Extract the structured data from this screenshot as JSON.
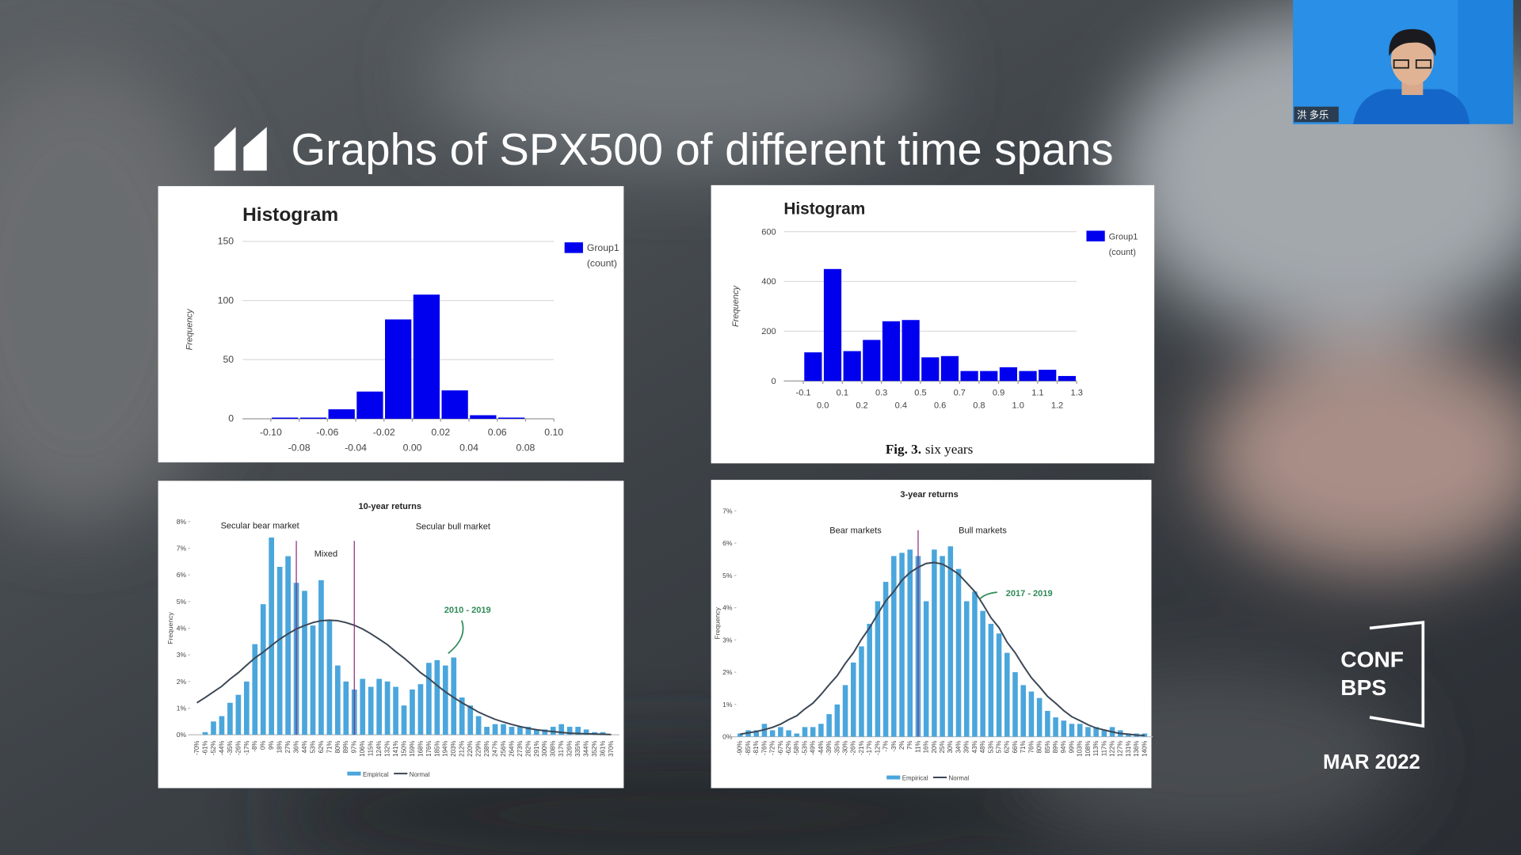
{
  "slide": {
    "title": "Graphs of SPX500 of different time spans",
    "logo_top": "CONF",
    "logo_bottom": "BPS",
    "date": "MAR 2022",
    "participant": "洪 多乐"
  },
  "chart_data": [
    {
      "type": "histogram",
      "title": "Histogram",
      "y_label": "Frequency",
      "bins": [
        -0.1,
        -0.08,
        -0.06,
        -0.04,
        -0.02,
        0,
        0.02,
        0.04,
        0.06,
        0.08,
        0.1
      ],
      "series": [
        {
          "name": "Group1",
          "color": "#0000ee",
          "values": [
            1,
            1,
            8,
            23,
            84,
            105,
            24,
            3,
            1,
            0
          ]
        }
      ],
      "legend_note": "(count)",
      "xlim": [
        -0.12,
        0.1
      ],
      "xticks": [
        {
          "value": -0.1,
          "label": "-0.10"
        },
        -0.08,
        -0.06,
        -0.04,
        -0.02,
        {
          "value": 0,
          "label": "0.00"
        },
        0.02,
        0.04,
        0.06,
        0.08,
        {
          "value": 0.1,
          "label": "0.10"
        }
      ],
      "ylim": [
        0,
        150
      ],
      "yticks": [
        0,
        50,
        100,
        150
      ],
      "grid": true
    },
    {
      "type": "histogram",
      "title": "Histogram",
      "y_label": "Frequency",
      "bins": [
        -0.1,
        0,
        0.1,
        0.2,
        0.3,
        0.4,
        0.5,
        0.6,
        0.7,
        0.8,
        0.9,
        1.0,
        1.1,
        1.2,
        1.3
      ],
      "series": [
        {
          "name": "Group1",
          "color": "#0000ee",
          "values": [
            115,
            450,
            120,
            165,
            240,
            245,
            95,
            100,
            40,
            40,
            55,
            40,
            45,
            20
          ]
        }
      ],
      "legend_note": "(count)",
      "xlim": [
        -0.2,
        1.3
      ],
      "xticks": [
        -0.1,
        {
          "value": 0,
          "label": "0.0"
        },
        0.1,
        0.2,
        0.3,
        0.4,
        0.5,
        0.6,
        0.7,
        0.8,
        0.9,
        {
          "value": 1,
          "label": "1.0"
        },
        1.1,
        1.2,
        1.3
      ],
      "ylim": [
        0,
        600
      ],
      "yticks": [
        0,
        200,
        400,
        600
      ],
      "grid": true,
      "caption_label": "Fig. 3.",
      "caption": "six years"
    },
    {
      "type": "bar",
      "title": "10-year returns",
      "y_label": "Frequency",
      "categories": [
        "-70%",
        "-61%",
        "-52%",
        "-44%",
        "-35%",
        "-26%",
        "-17%",
        "-8%",
        "0%",
        "9%",
        "18%",
        "27%",
        "36%",
        "44%",
        "53%",
        "62%",
        "71%",
        "80%",
        "89%",
        "97%",
        "106%",
        "115%",
        "124%",
        "132%",
        "141%",
        "150%",
        "159%",
        "168%",
        "176%",
        "185%",
        "194%",
        "203%",
        "212%",
        "220%",
        "229%",
        "238%",
        "247%",
        "256%",
        "264%",
        "273%",
        "282%",
        "291%",
        "300%",
        "308%",
        "317%",
        "326%",
        "335%",
        "344%",
        "352%",
        "361%",
        "370%"
      ],
      "series": [
        {
          "name": "Empirical",
          "color": "#4aa6dc",
          "values": [
            0,
            0.1,
            0.5,
            0.7,
            1.2,
            1.5,
            2.0,
            3.4,
            4.9,
            7.4,
            6.3,
            6.7,
            5.7,
            5.4,
            4.1,
            5.8,
            4.3,
            2.6,
            2.0,
            1.7,
            2.1,
            1.8,
            2.1,
            2.0,
            1.8,
            1.1,
            1.7,
            1.9,
            2.7,
            2.8,
            2.6,
            2.9,
            1.4,
            1.1,
            0.7,
            0.3,
            0.4,
            0.4,
            0.3,
            0.3,
            0.3,
            0.2,
            0.2,
            0.3,
            0.4,
            0.3,
            0.3,
            0.2,
            0.1,
            0.1,
            0
          ]
        },
        {
          "name": "Normal",
          "type": "line",
          "color": "#3b4654",
          "values": [
            1.2,
            1.4,
            1.61,
            1.82,
            2.09,
            2.33,
            2.61,
            2.88,
            3.1,
            3.35,
            3.59,
            3.79,
            3.97,
            4.1,
            4.21,
            4.28,
            4.3,
            4.28,
            4.21,
            4.11,
            3.97,
            3.79,
            3.59,
            3.38,
            3.12,
            2.88,
            2.61,
            2.33,
            2.11,
            1.85,
            1.61,
            1.4,
            1.2,
            1.03,
            0.85,
            0.71,
            0.58,
            0.48,
            0.39,
            0.31,
            0.24,
            0.19,
            0.15,
            0.12,
            0.09,
            0.06,
            0.05,
            0.04,
            0.03,
            0.02,
            0.01
          ]
        }
      ],
      "ylim": [
        0,
        8
      ],
      "yticks": [
        {
          "value": 0,
          "label": "0%"
        },
        {
          "value": 1,
          "label": "1%"
        },
        {
          "value": 2,
          "label": "2%"
        },
        {
          "value": 3,
          "label": "3%"
        },
        {
          "value": 4,
          "label": "4%"
        },
        {
          "value": 5,
          "label": "5%"
        },
        {
          "value": 6,
          "label": "6%"
        },
        {
          "value": 7,
          "label": "7%"
        },
        {
          "value": 8,
          "label": "8%"
        }
      ],
      "vlines": [
        "36%",
        "97%"
      ],
      "annotations": [
        "Secular bear market",
        "Mixed",
        "Secular bull market",
        "2010 - 2019"
      ]
    },
    {
      "type": "bar",
      "title": "3-year returns",
      "y_label": "Frequency",
      "categories": [
        "-90%",
        "-85%",
        "-81%",
        "-76%",
        "-72%",
        "-67%",
        "-62%",
        "-58%",
        "-53%",
        "-49%",
        "-44%",
        "-39%",
        "-35%",
        "-30%",
        "-26%",
        "-21%",
        "-17%",
        "-12%",
        "-7%",
        "-3%",
        "2%",
        "7%",
        "11%",
        "16%",
        "20%",
        "25%",
        "30%",
        "34%",
        "39%",
        "43%",
        "48%",
        "53%",
        "57%",
        "62%",
        "66%",
        "71%",
        "76%",
        "80%",
        "85%",
        "89%",
        "94%",
        "99%",
        "103%",
        "108%",
        "113%",
        "117%",
        "122%",
        "127%",
        "131%",
        "136%",
        "140%"
      ],
      "series": [
        {
          "name": "Empirical",
          "color": "#4aa6dc",
          "values": [
            0.1,
            0.2,
            0.2,
            0.4,
            0.2,
            0.3,
            0.2,
            0.1,
            0.3,
            0.3,
            0.4,
            0.7,
            1.0,
            1.6,
            2.3,
            2.8,
            3.5,
            4.2,
            4.8,
            5.6,
            5.7,
            5.8,
            5.6,
            4.2,
            5.8,
            5.6,
            5.9,
            5.2,
            4.2,
            4.5,
            3.9,
            3.5,
            3.2,
            2.6,
            2.0,
            1.6,
            1.4,
            1.2,
            0.8,
            0.6,
            0.5,
            0.4,
            0.4,
            0.3,
            0.3,
            0.2,
            0.3,
            0.2,
            0.1,
            0.1,
            0.1
          ]
        },
        {
          "name": "Normal",
          "type": "line",
          "color": "#3b4654",
          "values": [
            0.08,
            0.12,
            0.16,
            0.22,
            0.29,
            0.39,
            0.53,
            0.65,
            0.86,
            1.04,
            1.31,
            1.61,
            1.89,
            2.27,
            2.6,
            3.02,
            3.38,
            3.8,
            4.21,
            4.5,
            4.85,
            5.09,
            5.25,
            5.37,
            5.4,
            5.35,
            5.21,
            5.04,
            4.77,
            4.5,
            4.11,
            3.69,
            3.38,
            2.93,
            2.6,
            2.2,
            1.83,
            1.55,
            1.25,
            1.04,
            0.81,
            0.62,
            0.5,
            0.37,
            0.27,
            0.21,
            0.15,
            0.1,
            0.08,
            0.05,
            0.04
          ]
        }
      ],
      "ylim": [
        0,
        7
      ],
      "yticks": [
        {
          "value": 0,
          "label": "0%"
        },
        {
          "value": 1,
          "label": "1%"
        },
        {
          "value": 2,
          "label": "2%"
        },
        {
          "value": 3,
          "label": "3%"
        },
        {
          "value": 4,
          "label": "4%"
        },
        {
          "value": 5,
          "label": "5%"
        },
        {
          "value": 6,
          "label": "6%"
        },
        {
          "value": 7,
          "label": "7%"
        }
      ],
      "vlines": [
        "11%"
      ],
      "annotations": [
        "Bear markets",
        "Bull markets",
        "2017 - 2019"
      ]
    }
  ]
}
